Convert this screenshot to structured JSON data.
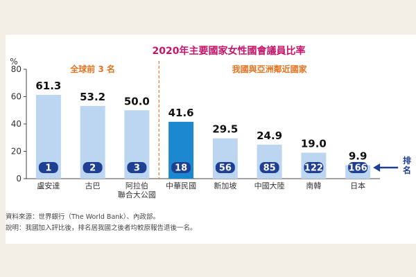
{
  "chart_data": {
    "type": "bar",
    "title": "2020年主要國家女性國會議員比率",
    "y_unit": "%",
    "ylim": [
      0,
      80
    ],
    "yticks": [
      0,
      20,
      40,
      60,
      80
    ],
    "groups": [
      {
        "label": "全球前 3 名",
        "start_index": 0,
        "count": 3
      },
      {
        "label": "我國與亞洲鄰近國家",
        "start_index": 3,
        "count": 5
      }
    ],
    "categories": [
      "盧安達",
      "古巴",
      "阿拉伯\n聯合大公國",
      "中華民國",
      "新加坡",
      "中國大陸",
      "南韓",
      "日本"
    ],
    "values": [
      61.3,
      53.2,
      50.0,
      41.6,
      29.5,
      24.9,
      19.0,
      9.9
    ],
    "value_labels": [
      "61.3",
      "53.2",
      "50.0",
      "41.6",
      "29.5",
      "24.9",
      "19.0",
      "9.9"
    ],
    "ranks": [
      "1",
      "2",
      "3",
      "18",
      "56",
      "85",
      "122",
      "166"
    ],
    "highlight_index": 3,
    "rank_axis_label": "排名",
    "colors": {
      "bar": "#bcd6f2",
      "bar_highlight": "#1b88cf",
      "rank_badge": "#1f3f93",
      "title": "#c8136a",
      "group_label": "#e4731f",
      "divider": "#e4731f",
      "axis": "#444444",
      "arrow": "#1f3f93"
    }
  },
  "notes": {
    "source": "資料來源：世界銀行（The World Bank）、內政部。",
    "explanation": "說明：我國加入評比後，排名居我國之後者均較原報告退後一名。"
  }
}
